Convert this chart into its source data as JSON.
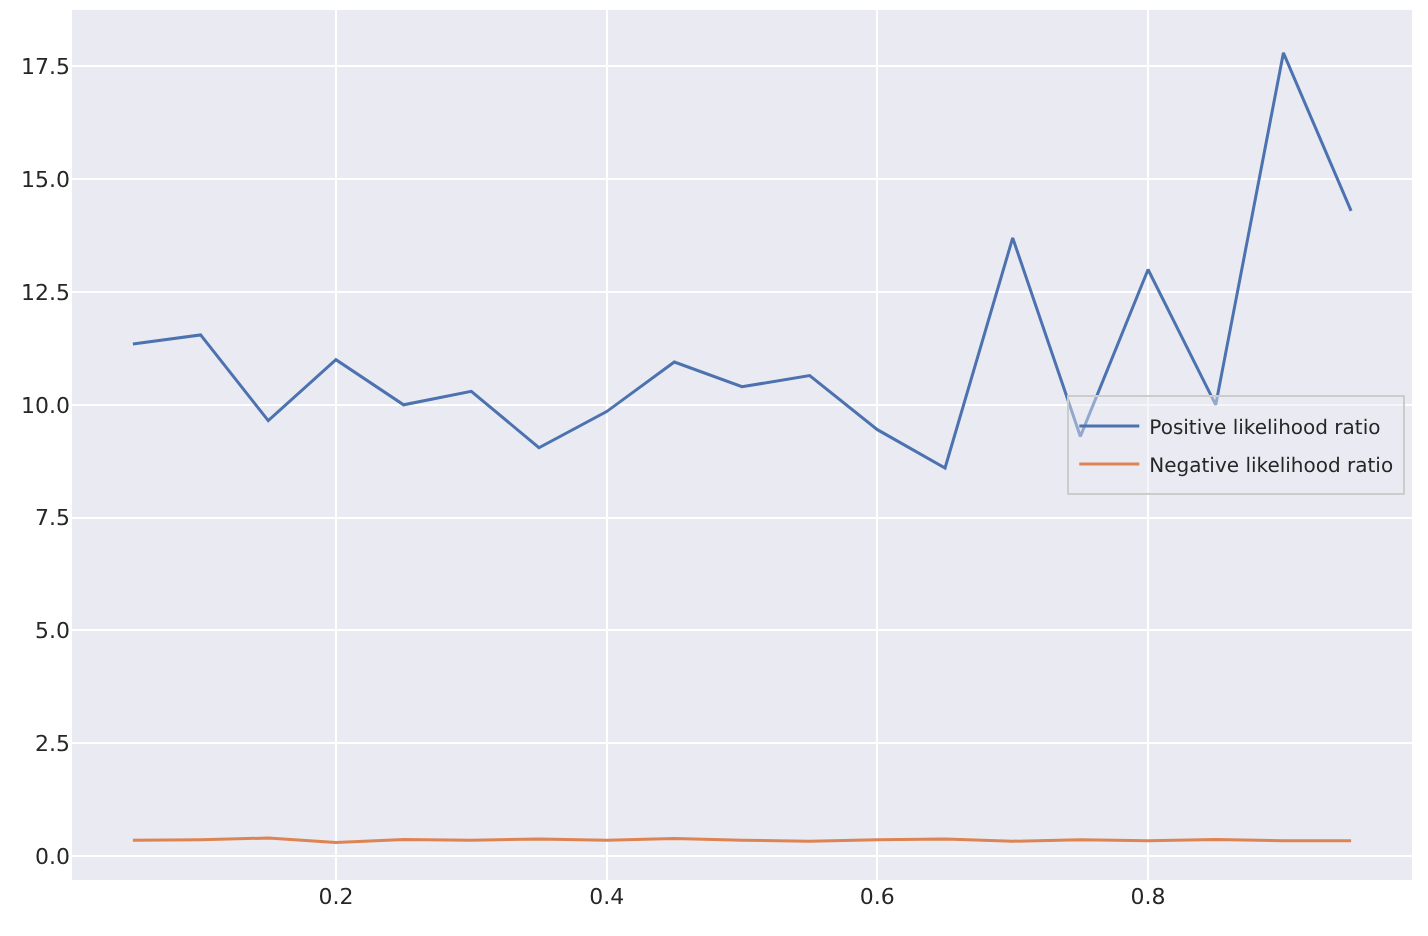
{
  "chart_data": {
    "type": "line",
    "x": [
      0.05,
      0.1,
      0.15,
      0.2,
      0.25,
      0.3,
      0.35,
      0.4,
      0.45,
      0.5,
      0.55,
      0.6,
      0.65,
      0.7,
      0.75,
      0.8,
      0.85,
      0.9,
      0.95
    ],
    "series": [
      {
        "name": "Positive likelihood ratio",
        "color": "#4c72b0",
        "values": [
          11.35,
          11.55,
          9.65,
          11.0,
          10.0,
          10.3,
          9.05,
          9.85,
          10.95,
          10.4,
          10.65,
          9.45,
          8.6,
          13.7,
          9.3,
          13.0,
          10.0,
          17.8,
          14.3
        ]
      },
      {
        "name": "Negative likelihood ratio",
        "color": "#dd8452",
        "values": [
          0.35,
          0.36,
          0.4,
          0.3,
          0.37,
          0.35,
          0.38,
          0.35,
          0.39,
          0.35,
          0.33,
          0.36,
          0.38,
          0.33,
          0.36,
          0.34,
          0.37,
          0.34,
          0.34
        ]
      }
    ],
    "xlim": [
      0.005,
      0.995
    ],
    "xticks": [
      0.2,
      0.4,
      0.6,
      0.8
    ],
    "ylim": [
      -0.53,
      18.75
    ],
    "yticks": [
      {
        "value": 0,
        "label": "0.0"
      },
      {
        "value": 2.5,
        "label": "2.5"
      },
      {
        "value": 5,
        "label": "5.0"
      },
      {
        "value": 7.5,
        "label": "7.5"
      },
      {
        "value": 10,
        "label": "10.0"
      },
      {
        "value": 12.5,
        "label": "12.5"
      },
      {
        "value": 15,
        "label": "15.0"
      },
      {
        "value": 17.5,
        "label": "17.5"
      }
    ],
    "grid": true,
    "legend": "right",
    "marker": "none",
    "line_style": "solid"
  }
}
